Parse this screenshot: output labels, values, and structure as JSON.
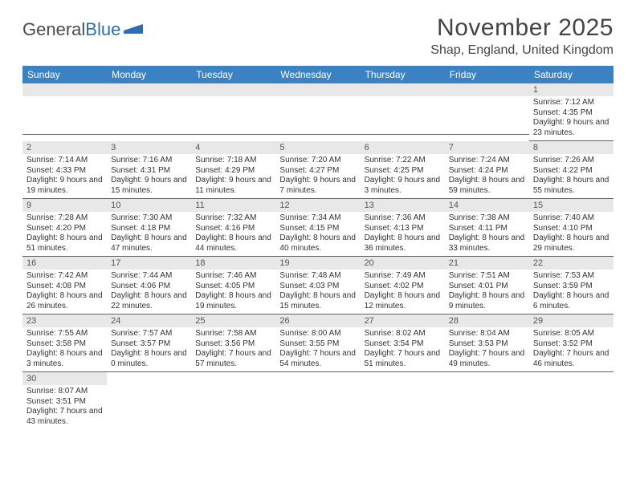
{
  "logo": {
    "text_a": "General",
    "text_b": "Blue"
  },
  "title": "November 2025",
  "location": "Shap, England, United Kingdom",
  "colors": {
    "header_bg": "#3b82c4",
    "header_fg": "#ffffff",
    "daynum_bg": "#e8e8e8",
    "rule": "#2a6fb5",
    "text": "#333333",
    "logo_gray": "#4a4a4a",
    "logo_blue": "#2a6fb5"
  },
  "day_headers": [
    "Sunday",
    "Monday",
    "Tuesday",
    "Wednesday",
    "Thursday",
    "Friday",
    "Saturday"
  ],
  "weeks": [
    [
      null,
      null,
      null,
      null,
      null,
      null,
      {
        "n": "1",
        "sr": "Sunrise: 7:12 AM",
        "ss": "Sunset: 4:35 PM",
        "dl": "Daylight: 9 hours and 23 minutes."
      }
    ],
    [
      {
        "n": "2",
        "sr": "Sunrise: 7:14 AM",
        "ss": "Sunset: 4:33 PM",
        "dl": "Daylight: 9 hours and 19 minutes."
      },
      {
        "n": "3",
        "sr": "Sunrise: 7:16 AM",
        "ss": "Sunset: 4:31 PM",
        "dl": "Daylight: 9 hours and 15 minutes."
      },
      {
        "n": "4",
        "sr": "Sunrise: 7:18 AM",
        "ss": "Sunset: 4:29 PM",
        "dl": "Daylight: 9 hours and 11 minutes."
      },
      {
        "n": "5",
        "sr": "Sunrise: 7:20 AM",
        "ss": "Sunset: 4:27 PM",
        "dl": "Daylight: 9 hours and 7 minutes."
      },
      {
        "n": "6",
        "sr": "Sunrise: 7:22 AM",
        "ss": "Sunset: 4:25 PM",
        "dl": "Daylight: 9 hours and 3 minutes."
      },
      {
        "n": "7",
        "sr": "Sunrise: 7:24 AM",
        "ss": "Sunset: 4:24 PM",
        "dl": "Daylight: 8 hours and 59 minutes."
      },
      {
        "n": "8",
        "sr": "Sunrise: 7:26 AM",
        "ss": "Sunset: 4:22 PM",
        "dl": "Daylight: 8 hours and 55 minutes."
      }
    ],
    [
      {
        "n": "9",
        "sr": "Sunrise: 7:28 AM",
        "ss": "Sunset: 4:20 PM",
        "dl": "Daylight: 8 hours and 51 minutes."
      },
      {
        "n": "10",
        "sr": "Sunrise: 7:30 AM",
        "ss": "Sunset: 4:18 PM",
        "dl": "Daylight: 8 hours and 47 minutes."
      },
      {
        "n": "11",
        "sr": "Sunrise: 7:32 AM",
        "ss": "Sunset: 4:16 PM",
        "dl": "Daylight: 8 hours and 44 minutes."
      },
      {
        "n": "12",
        "sr": "Sunrise: 7:34 AM",
        "ss": "Sunset: 4:15 PM",
        "dl": "Daylight: 8 hours and 40 minutes."
      },
      {
        "n": "13",
        "sr": "Sunrise: 7:36 AM",
        "ss": "Sunset: 4:13 PM",
        "dl": "Daylight: 8 hours and 36 minutes."
      },
      {
        "n": "14",
        "sr": "Sunrise: 7:38 AM",
        "ss": "Sunset: 4:11 PM",
        "dl": "Daylight: 8 hours and 33 minutes."
      },
      {
        "n": "15",
        "sr": "Sunrise: 7:40 AM",
        "ss": "Sunset: 4:10 PM",
        "dl": "Daylight: 8 hours and 29 minutes."
      }
    ],
    [
      {
        "n": "16",
        "sr": "Sunrise: 7:42 AM",
        "ss": "Sunset: 4:08 PM",
        "dl": "Daylight: 8 hours and 26 minutes."
      },
      {
        "n": "17",
        "sr": "Sunrise: 7:44 AM",
        "ss": "Sunset: 4:06 PM",
        "dl": "Daylight: 8 hours and 22 minutes."
      },
      {
        "n": "18",
        "sr": "Sunrise: 7:46 AM",
        "ss": "Sunset: 4:05 PM",
        "dl": "Daylight: 8 hours and 19 minutes."
      },
      {
        "n": "19",
        "sr": "Sunrise: 7:48 AM",
        "ss": "Sunset: 4:03 PM",
        "dl": "Daylight: 8 hours and 15 minutes."
      },
      {
        "n": "20",
        "sr": "Sunrise: 7:49 AM",
        "ss": "Sunset: 4:02 PM",
        "dl": "Daylight: 8 hours and 12 minutes."
      },
      {
        "n": "21",
        "sr": "Sunrise: 7:51 AM",
        "ss": "Sunset: 4:01 PM",
        "dl": "Daylight: 8 hours and 9 minutes."
      },
      {
        "n": "22",
        "sr": "Sunrise: 7:53 AM",
        "ss": "Sunset: 3:59 PM",
        "dl": "Daylight: 8 hours and 6 minutes."
      }
    ],
    [
      {
        "n": "23",
        "sr": "Sunrise: 7:55 AM",
        "ss": "Sunset: 3:58 PM",
        "dl": "Daylight: 8 hours and 3 minutes."
      },
      {
        "n": "24",
        "sr": "Sunrise: 7:57 AM",
        "ss": "Sunset: 3:57 PM",
        "dl": "Daylight: 8 hours and 0 minutes."
      },
      {
        "n": "25",
        "sr": "Sunrise: 7:58 AM",
        "ss": "Sunset: 3:56 PM",
        "dl": "Daylight: 7 hours and 57 minutes."
      },
      {
        "n": "26",
        "sr": "Sunrise: 8:00 AM",
        "ss": "Sunset: 3:55 PM",
        "dl": "Daylight: 7 hours and 54 minutes."
      },
      {
        "n": "27",
        "sr": "Sunrise: 8:02 AM",
        "ss": "Sunset: 3:54 PM",
        "dl": "Daylight: 7 hours and 51 minutes."
      },
      {
        "n": "28",
        "sr": "Sunrise: 8:04 AM",
        "ss": "Sunset: 3:53 PM",
        "dl": "Daylight: 7 hours and 49 minutes."
      },
      {
        "n": "29",
        "sr": "Sunrise: 8:05 AM",
        "ss": "Sunset: 3:52 PM",
        "dl": "Daylight: 7 hours and 46 minutes."
      }
    ],
    [
      {
        "n": "30",
        "sr": "Sunrise: 8:07 AM",
        "ss": "Sunset: 3:51 PM",
        "dl": "Daylight: 7 hours and 43 minutes."
      },
      null,
      null,
      null,
      null,
      null,
      null
    ]
  ]
}
